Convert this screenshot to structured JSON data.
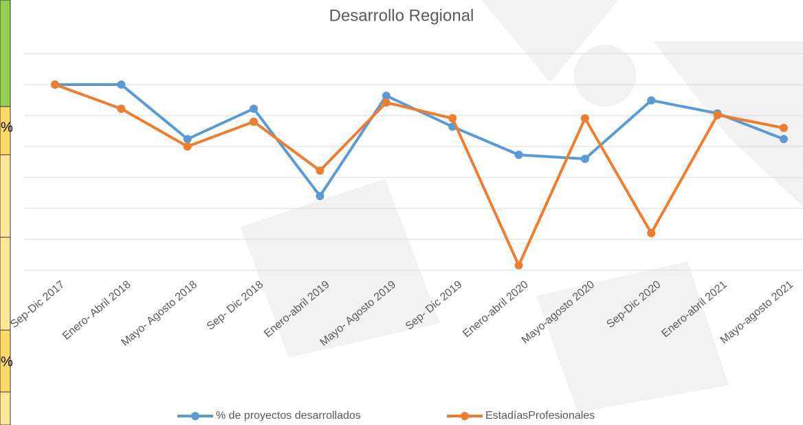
{
  "side_fragment": [
    "%",
    "%"
  ],
  "chart_data": {
    "type": "line",
    "title": "Desarrollo Regional",
    "categories": [
      "Sep-Dic 2017",
      "Enero- Abril 2018",
      "Mayo- Agosto 2018",
      "Sep- Dic 2018",
      "Enero-abril  2019",
      "Mayo- Agosto 2019",
      "Sep- Dic 2019",
      "Enero-abril  2020",
      "Mayo-agosto 2020",
      "Sep-Dic 2020",
      "Enero-abril 2021",
      "Mayo-agosto 2021"
    ],
    "series": [
      {
        "name": "% de proyectos desarrollados",
        "color": "#5b9bd5",
        "values": [
          6.0,
          6.0,
          4.24,
          5.22,
          2.4,
          5.64,
          4.64,
          3.73,
          3.6,
          5.49,
          5.07,
          4.24
        ]
      },
      {
        "name": "EstadíasProfesionales",
        "color": "#ed7d31",
        "values": [
          6.0,
          5.22,
          4.0,
          4.8,
          3.22,
          5.42,
          4.91,
          0.16,
          4.91,
          1.2,
          5.02,
          4.6
        ]
      }
    ],
    "ylim": [
      0,
      7
    ],
    "yticks": [
      0,
      1,
      2,
      3,
      4,
      5,
      6,
      7
    ],
    "grid": true,
    "legend": "bottom"
  }
}
